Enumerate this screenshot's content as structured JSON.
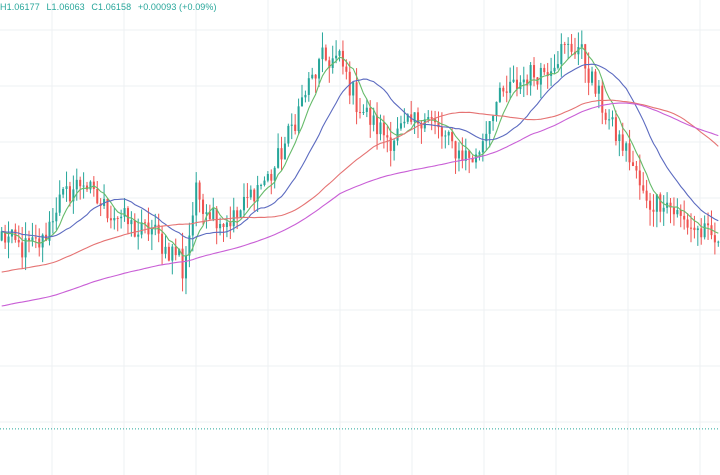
{
  "legend": {
    "high": "H1.06177",
    "low": "L1.06063",
    "close": "C1.06158",
    "change": "+0.00093 (+0.09%)"
  },
  "colors": {
    "up": "#26a69a",
    "down": "#ef5350",
    "grid": "#eef0f3",
    "ma_fast": "#66bb6a",
    "ma_mid": "#5c6bc0",
    "ma_slow": "#e57373",
    "ma_long": "#c95fd6",
    "price_line": "#26a69a"
  },
  "chart_data": {
    "type": "candlestick",
    "title": "",
    "xlabel": "",
    "ylabel": "",
    "grid": true,
    "price_line": 1.0565,
    "ylim": [
      1.0545,
      1.0745
    ],
    "ohlc_anchors": [
      [
        0,
        1.0649
      ],
      [
        6,
        1.0643
      ],
      [
        12,
        1.0646
      ],
      [
        16,
        1.0662
      ],
      [
        20,
        1.0668
      ],
      [
        24,
        1.0673
      ],
      [
        27,
        1.0665
      ],
      [
        31,
        1.066
      ],
      [
        35,
        1.0657
      ],
      [
        40,
        1.065
      ],
      [
        44,
        1.0652
      ],
      [
        48,
        1.0643
      ],
      [
        52,
        1.0641
      ],
      [
        53,
        1.0633
      ],
      [
        57,
        1.0667
      ],
      [
        61,
        1.066
      ],
      [
        65,
        1.0655
      ],
      [
        69,
        1.0657
      ],
      [
        74,
        1.0669
      ],
      [
        79,
        1.0675
      ],
      [
        84,
        1.0692
      ],
      [
        89,
        1.0711
      ],
      [
        94,
        1.0725
      ],
      [
        99,
        1.0725
      ],
      [
        104,
        1.0707
      ],
      [
        109,
        1.0697
      ],
      [
        114,
        1.0691
      ],
      [
        119,
        1.0696
      ],
      [
        124,
        1.0702
      ],
      [
        129,
        1.0692
      ],
      [
        134,
        1.0685
      ],
      [
        139,
        1.0682
      ],
      [
        144,
        1.0705
      ],
      [
        149,
        1.0712
      ],
      [
        154,
        1.0718
      ],
      [
        159,
        1.0721
      ],
      [
        164,
        1.0729
      ],
      [
        169,
        1.0731
      ],
      [
        174,
        1.0712
      ],
      [
        179,
        1.0695
      ],
      [
        184,
        1.0683
      ],
      [
        189,
        1.0662
      ],
      [
        194,
        1.0665
      ],
      [
        199,
        1.0656
      ],
      [
        204,
        1.0651
      ],
      [
        209,
        1.0647
      ],
      [
        210,
        1.0642
      ]
    ],
    "candle_count": 211,
    "moving_averages": [
      {
        "period": 7,
        "color_key": "ma_fast"
      },
      {
        "period": 20,
        "color_key": "ma_mid"
      },
      {
        "period": 55,
        "color_key": "ma_slow"
      },
      {
        "period": 100,
        "color_key": "ma_long"
      }
    ]
  }
}
